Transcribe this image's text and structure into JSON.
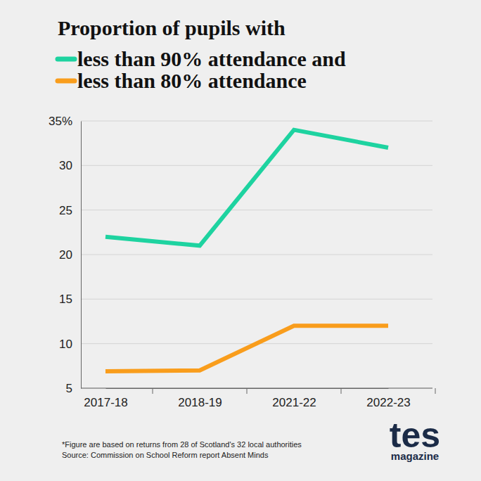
{
  "chart_data": {
    "type": "line",
    "title": "Proportion of pupils with",
    "categories": [
      "2017-18",
      "2018-19",
      "2021-22",
      "2022-23"
    ],
    "series": [
      {
        "name": "less than 90% attendance and",
        "color": "#1ed3a0",
        "values": [
          22,
          21,
          34,
          32
        ]
      },
      {
        "name": "less than 80% attendance",
        "color": "#f99d1c",
        "values": [
          6.9,
          7,
          12,
          12
        ]
      }
    ],
    "ylim": [
      5,
      35
    ],
    "yticks": [
      5,
      10,
      15,
      20,
      25,
      30,
      {
        "value": 35,
        "label": "35%"
      }
    ],
    "grid": true,
    "legend": "top-left",
    "footnotes": [
      "*Figure are based on returns from 28 of Scotland's 32 local authorities",
      "Source: Commission on School Reform report Absent Minds"
    ],
    "logo": [
      "tes",
      "magazine"
    ]
  }
}
